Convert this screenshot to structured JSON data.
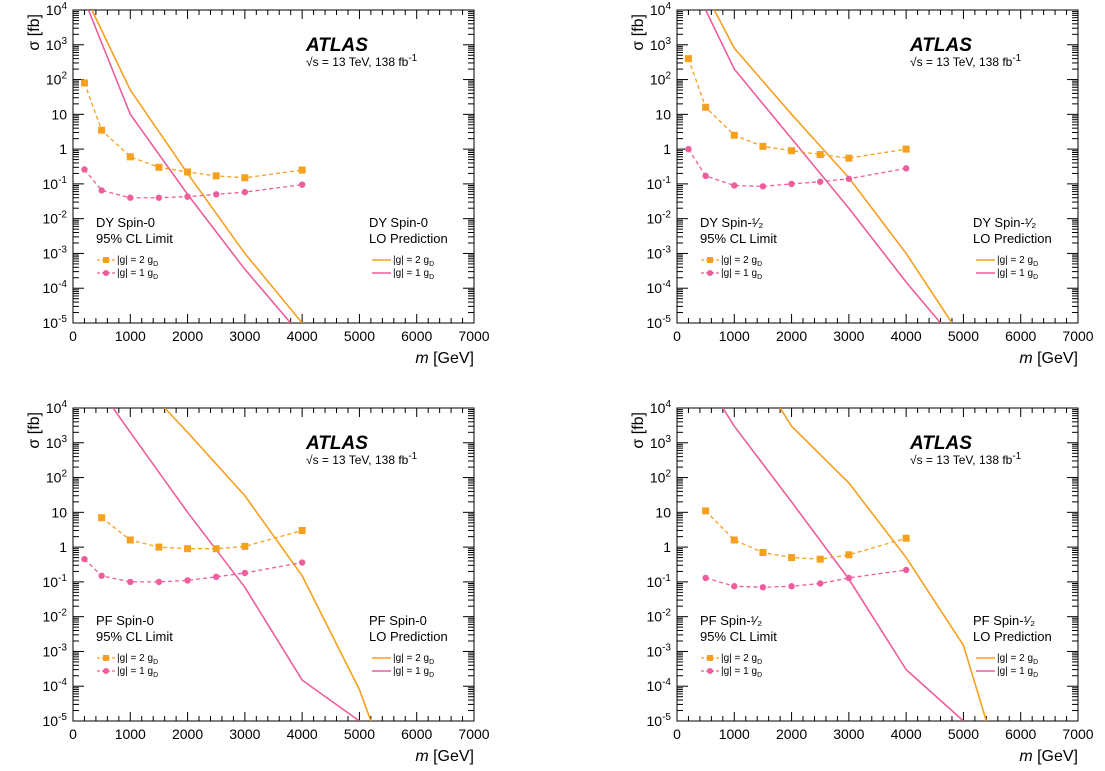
{
  "colors": {
    "g2": "#f5a01f",
    "g1": "#ee5d9c",
    "axis": "#000000"
  },
  "chart_data": [
    {
      "type": "line",
      "panel": "top-left",
      "xlabel": "m [GeV]",
      "ylabel": "σ [fb]",
      "xlim": [
        0,
        7000
      ],
      "ylim": [
        1e-05,
        10000.0
      ],
      "yscale": "log",
      "experiment": "ATLAS",
      "energy_label": "√s = 13 TeV, 138 fb",
      "energy_sup": "-1",
      "limit_title": "DY Spin-0",
      "limit_subtitle": "95% CL Limit",
      "prediction_title": "DY Spin-0",
      "prediction_subtitle": "LO Prediction",
      "legend_g2": "|g| = 2 g",
      "legend_g1": "|g| = 1 g",
      "legend_sub": "D",
      "limit_series": [
        {
          "name": "|g| = 2 gD",
          "color": "#f5a01f",
          "marker": "square",
          "x": [
            200,
            500,
            1000,
            1500,
            2000,
            2500,
            3000,
            4000
          ],
          "y": [
            80,
            3.5,
            0.6,
            0.3,
            0.22,
            0.17,
            0.15,
            0.25
          ]
        },
        {
          "name": "|g| = 1 gD",
          "color": "#ee5d9c",
          "marker": "circle",
          "x": [
            200,
            500,
            1000,
            1500,
            2000,
            2500,
            3000,
            4000
          ],
          "y": [
            0.26,
            0.065,
            0.04,
            0.04,
            0.043,
            0.05,
            0.058,
            0.095
          ]
        }
      ],
      "prediction_series": [
        {
          "name": "|g| = 2 gD",
          "color": "#f5a01f",
          "x": [
            330,
            1000,
            2000,
            3000,
            4000
          ],
          "y": [
            10000,
            50,
            0.2,
            0.001,
            1e-05
          ]
        },
        {
          "name": "|g| = 1 gD",
          "color": "#ee5d9c",
          "x": [
            270,
            1000,
            2000,
            3000,
            3800
          ],
          "y": [
            10000,
            10,
            0.05,
            0.00035,
            1e-05
          ]
        }
      ]
    },
    {
      "type": "line",
      "panel": "top-right",
      "xlabel": "m [GeV]",
      "ylabel": "σ [fb]",
      "xlim": [
        0,
        7000
      ],
      "ylim": [
        1e-05,
        10000.0
      ],
      "yscale": "log",
      "experiment": "ATLAS",
      "energy_label": "√s = 13 TeV, 138 fb",
      "energy_sup": "-1",
      "limit_title": "DY Spin-¹⁄₂",
      "limit_subtitle": "95% CL Limit",
      "prediction_title": "DY Spin-¹⁄₂",
      "prediction_subtitle": "LO Prediction",
      "legend_g2": "|g| = 2 g",
      "legend_g1": "|g| = 1 g",
      "legend_sub": "D",
      "limit_series": [
        {
          "name": "|g| = 2 gD",
          "color": "#f5a01f",
          "marker": "square",
          "x": [
            200,
            500,
            1000,
            1500,
            2000,
            2500,
            3000,
            4000
          ],
          "y": [
            400,
            16,
            2.5,
            1.2,
            0.9,
            0.7,
            0.55,
            1.0
          ]
        },
        {
          "name": "|g| = 1 gD",
          "color": "#ee5d9c",
          "marker": "circle",
          "x": [
            200,
            500,
            1000,
            1500,
            2000,
            2500,
            3000,
            4000
          ],
          "y": [
            1.0,
            0.17,
            0.09,
            0.085,
            0.1,
            0.115,
            0.14,
            0.28
          ]
        }
      ],
      "prediction_series": [
        {
          "name": "|g| = 2 gD",
          "color": "#f5a01f",
          "x": [
            650,
            1000,
            2000,
            3000,
            4000,
            4800
          ],
          "y": [
            10000,
            800,
            10,
            0.15,
            0.001,
            1e-05
          ]
        },
        {
          "name": "|g| = 1 gD",
          "color": "#ee5d9c",
          "x": [
            500,
            1000,
            2000,
            3000,
            4000,
            4600
          ],
          "y": [
            10000,
            200,
            2,
            0.02,
            0.00015,
            1e-05
          ]
        }
      ]
    },
    {
      "type": "line",
      "panel": "bottom-left",
      "xlabel": "m [GeV]",
      "ylabel": "σ [fb]",
      "xlim": [
        0,
        7000
      ],
      "ylim": [
        1e-05,
        10000.0
      ],
      "yscale": "log",
      "experiment": "ATLAS",
      "energy_label": "√s = 13 TeV, 138 fb",
      "energy_sup": "-1",
      "limit_title": "PF Spin-0",
      "limit_subtitle": "95% CL Limit",
      "prediction_title": "PF Spin-0",
      "prediction_subtitle": "LO Prediction",
      "legend_g2": "|g| = 2 g",
      "legend_g1": "|g| = 1 g",
      "legend_sub": "D",
      "limit_series": [
        {
          "name": "|g| = 2 gD",
          "color": "#f5a01f",
          "marker": "square",
          "x": [
            500,
            1000,
            1500,
            2000,
            2500,
            3000,
            4000
          ],
          "y": [
            7,
            1.6,
            1.0,
            0.9,
            0.9,
            1.05,
            3.0
          ]
        },
        {
          "name": "|g| = 1 gD",
          "color": "#ee5d9c",
          "marker": "circle",
          "x": [
            200,
            500,
            1000,
            1500,
            2000,
            2500,
            3000,
            4000
          ],
          "y": [
            0.45,
            0.15,
            0.1,
            0.1,
            0.11,
            0.14,
            0.18,
            0.36
          ]
        }
      ],
      "prediction_series": [
        {
          "name": "|g| = 2 gD",
          "color": "#f5a01f",
          "x": [
            1600,
            2000,
            3000,
            4000,
            5000,
            5200
          ],
          "y": [
            10000,
            2000,
            30,
            0.15,
            8e-05,
            1e-05
          ]
        },
        {
          "name": "|g| = 1 gD",
          "color": "#ee5d9c",
          "x": [
            700,
            1000,
            2000,
            3000,
            4000,
            5000
          ],
          "y": [
            10000,
            2000,
            10,
            0.07,
            0.00015,
            1e-05
          ]
        }
      ]
    },
    {
      "type": "line",
      "panel": "bottom-right",
      "xlabel": "m [GeV]",
      "ylabel": "σ [fb]",
      "xlim": [
        0,
        7000
      ],
      "ylim": [
        1e-05,
        10000.0
      ],
      "yscale": "log",
      "experiment": "ATLAS",
      "energy_label": "√s = 13 TeV, 138 fb",
      "energy_sup": "-1",
      "limit_title": "PF Spin-¹⁄₂",
      "limit_subtitle": "95% CL Limit",
      "prediction_title": "PF Spin-¹⁄₂",
      "prediction_subtitle": "LO Prediction",
      "legend_g2": "|g| = 2 g",
      "legend_g1": "|g| = 1 g",
      "legend_sub": "D",
      "limit_series": [
        {
          "name": "|g| = 2 gD",
          "color": "#f5a01f",
          "marker": "square",
          "x": [
            500,
            1000,
            1500,
            2000,
            2500,
            3000,
            4000
          ],
          "y": [
            11,
            1.6,
            0.7,
            0.5,
            0.45,
            0.6,
            1.8
          ]
        },
        {
          "name": "|g| = 1 gD",
          "color": "#ee5d9c",
          "marker": "circle",
          "x": [
            500,
            1000,
            1500,
            2000,
            2500,
            3000,
            4000
          ],
          "y": [
            0.13,
            0.075,
            0.07,
            0.075,
            0.09,
            0.13,
            0.22
          ]
        }
      ],
      "prediction_series": [
        {
          "name": "|g| = 2 gD",
          "color": "#f5a01f",
          "x": [
            1800,
            2000,
            3000,
            4000,
            5000,
            5400
          ],
          "y": [
            10000,
            3000,
            70,
            0.5,
            0.0015,
            1e-05
          ]
        },
        {
          "name": "|g| = 1 gD",
          "color": "#ee5d9c",
          "x": [
            800,
            1000,
            2000,
            3000,
            4000,
            5000
          ],
          "y": [
            10000,
            3000,
            20,
            0.12,
            0.0003,
            1e-05
          ]
        }
      ]
    }
  ]
}
